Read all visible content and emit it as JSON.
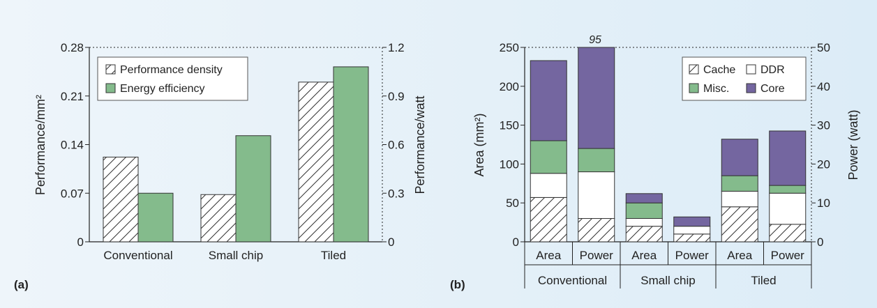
{
  "chart_data": [
    {
      "type": "bar",
      "panel_label": "(a)",
      "categories": [
        "Conventional",
        "Small chip",
        "Tiled"
      ],
      "series": [
        {
          "name": "Performance density",
          "axis": "left",
          "pattern": "hatch",
          "values": [
            0.122,
            0.068,
            0.23
          ]
        },
        {
          "name": "Energy efficiency",
          "axis": "right",
          "color": "#84bb8c",
          "values": [
            0.3,
            0.655,
            1.08
          ]
        }
      ],
      "ylabel": "Performance/mm²",
      "ylabel_right": "Performance/watt",
      "ylim": [
        0,
        0.28
      ],
      "ylim_right": [
        0,
        1.2
      ],
      "yticks": [
        "0",
        "0.07",
        "0.14",
        "0.21",
        "0.28"
      ],
      "yticks_right": [
        "0",
        "0.3",
        "0.6",
        "0.9",
        "1.2"
      ],
      "legend_position": "top-left",
      "grid": false
    },
    {
      "type": "stacked-bar",
      "panel_label": "(b)",
      "groups": [
        "Conventional",
        "Small chip",
        "Tiled"
      ],
      "subcategories": [
        "Area",
        "Power",
        "Area",
        "Power",
        "Area",
        "Power"
      ],
      "bar_axes": [
        "left",
        "right",
        "left",
        "right",
        "left",
        "right"
      ],
      "series": [
        {
          "name": "Cache",
          "pattern": "hatch",
          "values": [
            57,
            6,
            20,
            2,
            45,
            4.5
          ]
        },
        {
          "name": "DDR",
          "color": "#ffffff",
          "values": [
            31,
            12,
            10,
            2,
            20,
            8
          ]
        },
        {
          "name": "Misc.",
          "color": "#84bb8c",
          "values": [
            42,
            6,
            20,
            0,
            20,
            2
          ]
        },
        {
          "name": "Core",
          "color": "#7466a0",
          "values": [
            103,
            26,
            12,
            2.4,
            47,
            14
          ]
        }
      ],
      "annotation": "95",
      "ylabel": "Area (mm²)",
      "ylabel_right": "Power (watt)",
      "ylim": [
        0,
        250
      ],
      "ylim_right": [
        0,
        50
      ],
      "yticks": [
        "0",
        "50",
        "100",
        "150",
        "200",
        "250"
      ],
      "yticks_right": [
        "0",
        "10",
        "20",
        "30",
        "40",
        "50"
      ],
      "legend_position": "top-right",
      "grid": false
    }
  ]
}
